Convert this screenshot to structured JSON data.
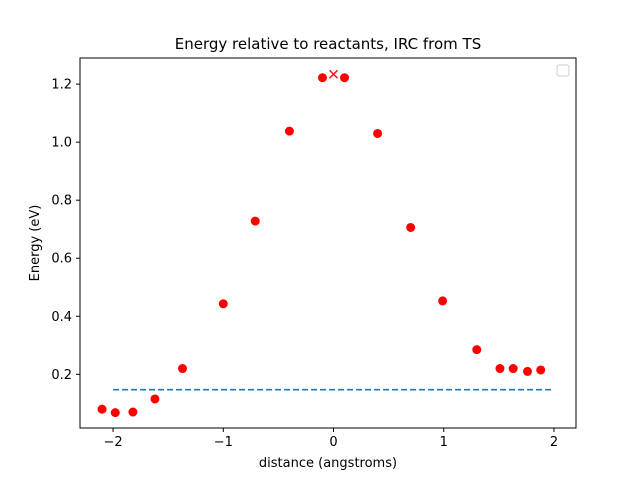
{
  "chart_data": {
    "type": "scatter",
    "title": "Energy relative to reactants, IRC from TS",
    "xlabel": "distance (angstroms)",
    "ylabel": "Energy (eV)",
    "xlim": [
      -2.3,
      2.2
    ],
    "ylim": [
      0.015,
      1.29
    ],
    "xticks": [
      -2,
      -1,
      0,
      1,
      2
    ],
    "xtick_labels": [
      "−2",
      "−1",
      "0",
      "1",
      "2"
    ],
    "yticks": [
      0.2,
      0.4,
      0.6,
      0.8,
      1.0,
      1.2
    ],
    "ytick_labels": [
      "0.2",
      "0.4",
      "0.6",
      "0.8",
      "1.0",
      "1.2"
    ],
    "grid": false,
    "legend": {
      "placement": "upper right",
      "entries": []
    },
    "colors": {
      "points": "#ff0000",
      "marker_x": "#ff0000",
      "dashed_line": "#1f77b4"
    },
    "series": [
      {
        "type": "scatter",
        "marker": "circle",
        "x": [
          -2.1,
          -1.98,
          -1.82,
          -1.62,
          -1.37,
          -1.0,
          -0.71,
          -0.4,
          -0.1,
          0.1,
          0.4,
          0.7,
          0.99,
          1.3,
          1.51,
          1.63,
          1.76,
          1.88
        ],
        "y": [
          0.08,
          0.068,
          0.07,
          0.115,
          0.22,
          0.443,
          0.728,
          1.038,
          1.222,
          1.222,
          1.03,
          0.706,
          0.453,
          0.285,
          0.22,
          0.22,
          0.21,
          0.215
        ]
      },
      {
        "type": "scatter",
        "marker": "x",
        "x": [
          0.0
        ],
        "y": [
          1.234
        ]
      },
      {
        "type": "line",
        "style": "dashed",
        "x": [
          -2.0,
          2.0
        ],
        "y": [
          0.147,
          0.147
        ]
      }
    ]
  }
}
